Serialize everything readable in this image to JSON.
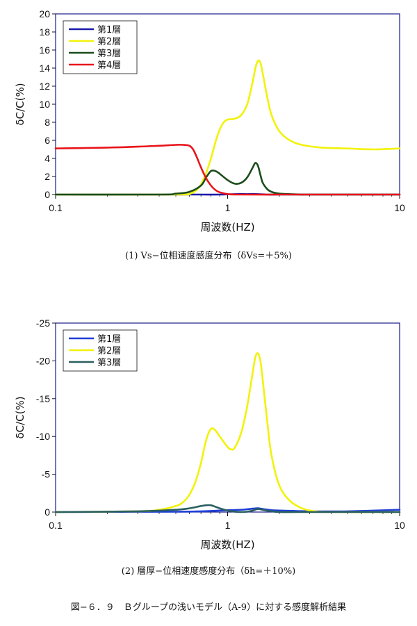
{
  "chart_data": [
    {
      "type": "line",
      "xlabel": "周波数(HZ)",
      "ylabel": "δC/C(%)",
      "xscale": "log",
      "xlim": [
        0.1,
        10
      ],
      "ylim": [
        0,
        20
      ],
      "yticks": [
        0,
        2,
        4,
        6,
        8,
        10,
        12,
        14,
        16,
        18,
        20
      ],
      "xticks": [
        "0.1",
        "1",
        "10"
      ],
      "legend_position": "top-left",
      "caption": "(1)  Vs−位相速度感度分布（δVs=＋5%)",
      "series": [
        {
          "name": "第1層",
          "color": "#1a1aa8",
          "x": [
            0.1,
            0.5,
            0.7,
            0.9,
            1.1,
            1.3,
            1.5,
            1.7,
            2,
            3,
            10
          ],
          "y": [
            0,
            0,
            0,
            0,
            0.05,
            0.05,
            0.05,
            0,
            0,
            0,
            0
          ]
        },
        {
          "name": "第2層",
          "color": "#f2f20a",
          "x": [
            0.1,
            0.5,
            0.6,
            0.65,
            0.7,
            0.75,
            0.8,
            0.85,
            0.9,
            0.95,
            1.0,
            1.1,
            1.2,
            1.3,
            1.4,
            1.45,
            1.5,
            1.55,
            1.6,
            1.7,
            1.8,
            2.0,
            2.3,
            2.7,
            3.5,
            5,
            7,
            10
          ],
          "y": [
            0,
            0,
            0.1,
            0.4,
            1.1,
            2.4,
            4.0,
            5.8,
            7.2,
            8.0,
            8.3,
            8.4,
            8.8,
            10.0,
            12.5,
            14.0,
            14.8,
            14.6,
            13.4,
            10.8,
            8.8,
            7.0,
            6.0,
            5.5,
            5.2,
            5.1,
            5.0,
            5.1
          ]
        },
        {
          "name": "第3層",
          "color": "#1b4d1b",
          "x": [
            0.1,
            0.4,
            0.5,
            0.6,
            0.7,
            0.75,
            0.8,
            0.85,
            0.9,
            1.0,
            1.1,
            1.2,
            1.3,
            1.4,
            1.45,
            1.5,
            1.55,
            1.6,
            1.7,
            1.8,
            2.0,
            2.3,
            2.7,
            3.0,
            10
          ],
          "y": [
            0,
            0,
            0.1,
            0.3,
            1.0,
            1.9,
            2.6,
            2.6,
            2.3,
            1.6,
            1.2,
            1.3,
            1.9,
            3.0,
            3.5,
            3.2,
            2.2,
            1.3,
            0.6,
            0.3,
            0.1,
            0.05,
            0,
            0,
            0
          ]
        },
        {
          "name": "第4層",
          "color": "#e8141a",
          "x": [
            0.1,
            0.2,
            0.3,
            0.4,
            0.5,
            0.55,
            0.6,
            0.63,
            0.66,
            0.7,
            0.75,
            0.8,
            0.85,
            0.9,
            1.0,
            1.2,
            2,
            3,
            10
          ],
          "y": [
            5.1,
            5.2,
            5.3,
            5.4,
            5.5,
            5.5,
            5.4,
            5.0,
            4.2,
            3.0,
            1.8,
            1.0,
            0.5,
            0.25,
            0.05,
            0,
            0,
            0,
            0
          ]
        }
      ]
    },
    {
      "type": "line",
      "xlabel": "周波数(HZ)",
      "ylabel": "δC/C(%)",
      "xscale": "log",
      "xlim": [
        0.1,
        10
      ],
      "ylim": [
        0,
        -25
      ],
      "yticks": [
        0,
        -5,
        -10,
        -15,
        -20,
        -25
      ],
      "xticks": [
        "0.1",
        "1",
        "10"
      ],
      "legend_position": "top-left",
      "caption": "(2)  層厚−位相速度感度分布（δh=＋10%)",
      "series": [
        {
          "name": "第1層",
          "color": "#1f3fd6",
          "x": [
            0.1,
            0.5,
            0.7,
            0.9,
            1.0,
            1.2,
            1.4,
            1.5,
            1.6,
            1.8,
            2.0,
            3.0,
            5.0,
            10
          ],
          "y": [
            0,
            -0.05,
            -0.1,
            -0.2,
            -0.25,
            -0.3,
            -0.45,
            -0.5,
            -0.4,
            -0.25,
            -0.2,
            -0.1,
            -0.1,
            -0.3
          ]
        },
        {
          "name": "第2層",
          "color": "#f2f20a",
          "x": [
            0.1,
            0.3,
            0.4,
            0.5,
            0.55,
            0.6,
            0.65,
            0.7,
            0.75,
            0.8,
            0.85,
            0.9,
            1.0,
            1.05,
            1.1,
            1.2,
            1.3,
            1.4,
            1.45,
            1.5,
            1.55,
            1.6,
            1.7,
            1.8,
            2.0,
            2.3,
            2.7,
            3.2,
            4,
            10
          ],
          "y": [
            0,
            -0.1,
            -0.3,
            -0.8,
            -1.3,
            -2.3,
            -4.0,
            -6.5,
            -9.5,
            -11.0,
            -10.8,
            -10.0,
            -8.6,
            -8.3,
            -8.5,
            -10.5,
            -14.0,
            -18.5,
            -20.5,
            -21.0,
            -20.0,
            -17.5,
            -12.0,
            -7.5,
            -3.5,
            -1.5,
            -0.5,
            -0.1,
            0,
            0
          ]
        },
        {
          "name": "第3層",
          "color": "#2a5f5f",
          "x": [
            0.1,
            0.3,
            0.5,
            0.6,
            0.7,
            0.75,
            0.8,
            0.85,
            0.9,
            1.0,
            1.1,
            1.2,
            1.3,
            1.4,
            1.5,
            1.6,
            1.8,
            2.0,
            2.5,
            3.0,
            10
          ],
          "y": [
            0,
            -0.1,
            -0.3,
            -0.5,
            -0.8,
            -0.9,
            -0.9,
            -0.7,
            -0.5,
            -0.2,
            -0.05,
            0,
            -0.05,
            -0.2,
            -0.4,
            -0.3,
            -0.1,
            0,
            0,
            0,
            0
          ]
        }
      ]
    }
  ],
  "figure_caption": "図−６．９　Ｂグループの浅いモデル（A-9）に対する感度解析結果"
}
